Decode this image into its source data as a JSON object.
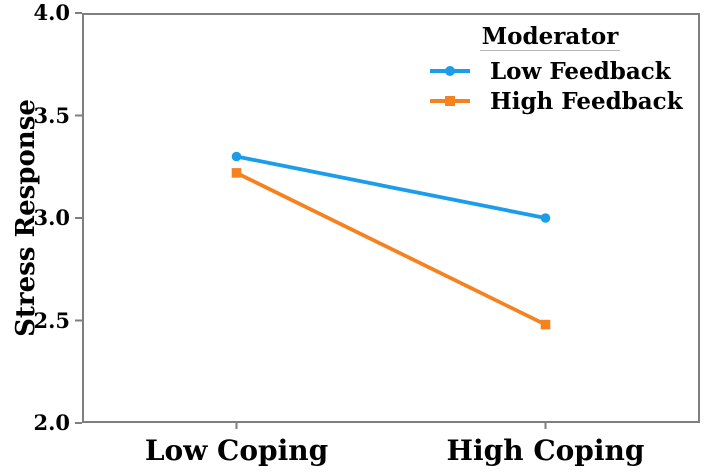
{
  "chart_data": {
    "type": "line",
    "title": "",
    "xlabel": "",
    "ylabel": "Stress Response",
    "categories": [
      "Low Coping",
      "High Coping"
    ],
    "series": [
      {
        "name": "Low Feedback",
        "color": "#1b9de9",
        "marker": "circle",
        "values": [
          3.3,
          3.0
        ]
      },
      {
        "name": "High Feedback",
        "color": "#f6821f",
        "marker": "square",
        "values": [
          3.22,
          2.48
        ]
      }
    ],
    "ylim": [
      2.0,
      4.0
    ],
    "yticks": [
      "2.0",
      "2.5",
      "3.0",
      "3.5",
      "4.0"
    ],
    "grid": false,
    "frame": true,
    "axis_color": "#7f7f7f",
    "legend": {
      "title": "Moderator",
      "position": "top-right"
    }
  }
}
